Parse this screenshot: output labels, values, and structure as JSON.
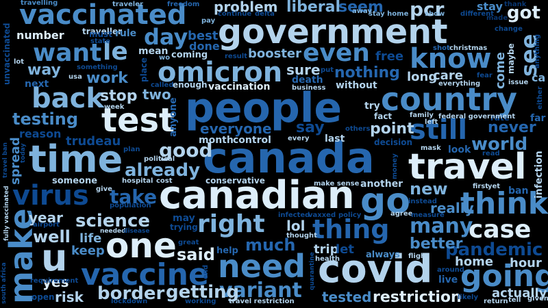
{
  "words": {
    "government": "government",
    "people": "people",
    "canada": "canada",
    "canadian": "canadian",
    "covid": "covid",
    "travel": "travel",
    "country": "country",
    "time": "time",
    "test": "test",
    "vaccinated": "vaccinated",
    "omicron": "omicron",
    "need": "need",
    "one": "one",
    "go": "go",
    "think": "think",
    "make": "make",
    "u": "u",
    "vaccine": "vaccine",
    "going": "going",
    "right": "right",
    "virus": "virus",
    "back": "back",
    "know": "know",
    "even": "even",
    "still": "still",
    "case": "case",
    "thing": "thing",
    "want": "want",
    "le": "le",
    "day": "day",
    "got": "got",
    "see": "see",
    "pcr": "pcr",
    "seem": "seem",
    "liberal": "liberal",
    "problem": "problem",
    "testing": "testing",
    "good": "good",
    "science": "science",
    "variant": "variant",
    "border": "border",
    "getting": "getting",
    "said": "said",
    "many": "many",
    "much": "much",
    "pandemic": "pandemic",
    "world": "world",
    "already": "already",
    "take": "take",
    "stop": "stop",
    "work": "work",
    "way": "way",
    "spread": "spread",
    "restriction": "restriction",
    "point": "point",
    "everyone": "everyone",
    "say": "say",
    "never": "never",
    "new": "new",
    "really": "really",
    "better": "better",
    "home": "home",
    "hour": "hour",
    "tested": "tested",
    "actually": "actually",
    "risk": "risk",
    "yes": "yes",
    "well": "well",
    "life": "life",
    "keep": "keep",
    "lol": "lol",
    "trip": "trip",
    "let": "let",
    "year": "year",
    "two": "two",
    "nothing": "nothing",
    "sure": "sure",
    "free": "free",
    "booster": "booster",
    "best": "best",
    "done": "done",
    "mean": "mean",
    "coming": "coming",
    "number": "number",
    "travelling": "travelling",
    "traveller": "traveller",
    "traveler": "traveler",
    "freedom": "freedom",
    "must": "must",
    "rule": "rule",
    "state": "state",
    "pay": "pay",
    "continue": "continue",
    "delta": "delta",
    "away": "away",
    "stay_home": "stay home",
    "show": "show",
    "different": "different",
    "stay": "stay",
    "thank": "thank",
    "made": "made",
    "change": "change",
    "maybe": "maybe",
    "anything": "anything",
    "come": "come",
    "ca": "ca",
    "unvaccinated": "unvaccinated",
    "lot": "lot",
    "something": "something",
    "usa": "usa",
    "next": "next",
    "result": "result",
    "wo": "wo",
    "place": "place",
    "called": "called",
    "enough": "enough",
    "vaccination": "vaccination",
    "death": "death",
    "business": "business",
    "without": "without",
    "put": "put",
    "long": "long",
    "care": "care",
    "fear": "fear",
    "shot": "shot",
    "christmas": "christmas",
    "issue": "issue",
    "everything": "everything",
    "either": "either",
    "far": "far",
    "rate": "rate",
    "family": "family",
    "federal_government": "federal government",
    "try": "try",
    "fact": "fact",
    "left": "left",
    "week": "week",
    "anyone": "anyone",
    "month": "month",
    "control": "control",
    "every": "every",
    "last": "last",
    "others": "others",
    "decision": "decision",
    "reason": "reason",
    "trudeau": "trudeau",
    "plan": "plan",
    "political": "political",
    "mask": "mask",
    "look": "look",
    "read": "read",
    "infection": "infection",
    "money": "money",
    "conservative": "conservative",
    "hospital": "hospital",
    "cost": "cost",
    "give": "give",
    "someone": "someone",
    "make_sense": "make sense",
    "another": "another",
    "first": "first",
    "yet": "yet",
    "ban": "ban",
    "travel_ban": "travel ban",
    "today": "today",
    "fully_vaccinated": "fully vaccinated",
    "airport": "airport",
    "population": "population",
    "may": "may",
    "trying": "trying",
    "needed": "needed",
    "disease": "disease",
    "infected": "infected",
    "vaxxed": "vaxxed",
    "policy": "policy",
    "agree": "agree",
    "measure": "measure",
    "instead": "instead",
    "thought": "thought",
    "great": "great",
    "help": "help",
    "always": "always",
    "flight": "flight",
    "health": "health",
    "quarantine": "quarantine",
    "around": "around",
    "live": "live",
    "end": "end",
    "south_africa": "south africa",
    "requirement": "requirement",
    "open": "open",
    "lockdown": "lockdown",
    "working": "working",
    "travel_restriction": "travel restriction",
    "likely": "likely",
    "return": "return",
    "tell": "tell",
    "given": "given"
  }
}
